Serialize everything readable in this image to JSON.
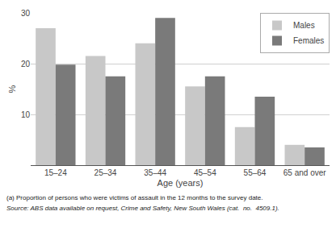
{
  "chart_data": {
    "type": "bar",
    "categories": [
      "15–24",
      "25–34",
      "35–44",
      "45–54",
      "55–64",
      "65 and over"
    ],
    "series": [
      {
        "name": "Males",
        "color": "#c8c8c8",
        "values": [
          27.0,
          21.5,
          24.0,
          15.5,
          7.5,
          4.0
        ]
      },
      {
        "name": "Females",
        "color": "#7a7a7a",
        "values": [
          19.8,
          17.5,
          29.0,
          17.5,
          13.5,
          3.5
        ]
      }
    ],
    "xlabel": "Age (years)",
    "ylabel": "%",
    "ylim": [
      0,
      30
    ],
    "yticks": [
      10,
      20,
      30
    ],
    "grid": true,
    "legend": "upper right",
    "annotations": [
      "(a) Proportion of persons who were victims of assault in the 12 months to the survey date.",
      "Source: ABS data available on request, Crime and Safety, New South Wales (cat.  no.  4509.1)."
    ]
  }
}
